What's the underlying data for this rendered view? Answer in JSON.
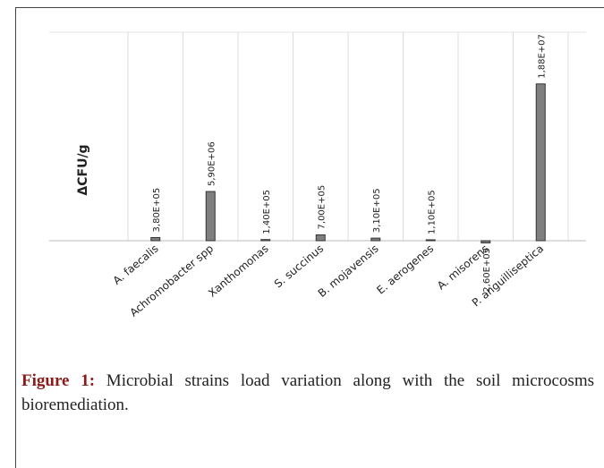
{
  "chart_data": {
    "type": "bar",
    "ylabel": "ΔCFU/g",
    "categories": [
      "A. faecalis",
      "Achromobacter spp",
      "Xanthomonas",
      "S. succinus",
      "B. mojavensis",
      "E. aerogenes",
      "A. misorens",
      "P. anguilliseptica"
    ],
    "values": [
      380000,
      5900000,
      140000,
      700000,
      310000,
      110000,
      -260000,
      18800000
    ],
    "value_labels": [
      "3,80E+05",
      "5,90E+06",
      "1,40E+05",
      "7,00E+05",
      "3,10E+05",
      "1,10E+05",
      "-2,60E+05",
      "1,88E+07"
    ],
    "color": "#7f7f7f",
    "ylim": [
      0,
      25000000
    ],
    "caption_label": "Figure 1:",
    "caption": "Microbial strains load variation along with the soil microcosms bioremediation."
  }
}
